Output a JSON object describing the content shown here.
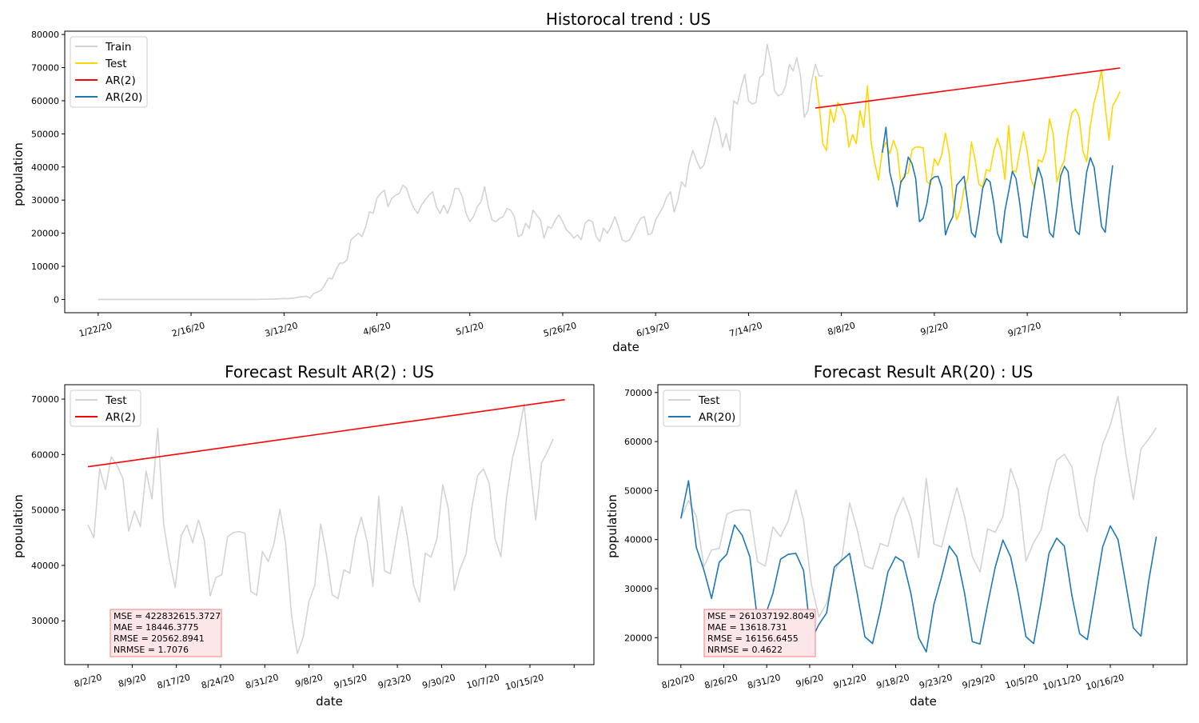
{
  "colors": {
    "train": "#d3d3d3",
    "test_top": "#ffd700",
    "test_bottom": "#d3d3d3",
    "ar2": "#ff0000",
    "ar20": "#1f77b4",
    "metrics_bg": "#fde6e8",
    "metrics_border": "#f08080"
  },
  "chart_data": [
    {
      "type": "line",
      "title": "Historocal trend : US",
      "xlabel": "date",
      "ylabel": "population",
      "x_start": "1/22/20",
      "x_tick_labels": [
        "1/22/20",
        "2/16/20",
        "3/12/20",
        "4/6/20",
        "5/1/20",
        "5/26/20",
        "6/19/20",
        "7/14/20",
        "8/8/20",
        "9/2/20",
        "9/27/20"
      ],
      "y_ticks": [
        0,
        10000,
        20000,
        30000,
        40000,
        50000,
        60000,
        70000,
        80000
      ],
      "ylim": [
        -4000,
        81000
      ],
      "legend": [
        "Train",
        "Test",
        "AR(2)",
        "AR(20)"
      ],
      "legend_loc": "upper left",
      "series": [
        {
          "name": "Train",
          "start_day": 0,
          "values": [
            0,
            0,
            0,
            0,
            0,
            0,
            0,
            0,
            0,
            0,
            0,
            0,
            0,
            0,
            0,
            0,
            0,
            0,
            0,
            0,
            0,
            0,
            0,
            0,
            0,
            0,
            0,
            0,
            0,
            0,
            0,
            0,
            0,
            0,
            0,
            0,
            0,
            0,
            0,
            0,
            0,
            0,
            0,
            0,
            50,
            60,
            80,
            100,
            150,
            200,
            300,
            200,
            400,
            500,
            700,
            800,
            1000,
            400,
            1800,
            2200,
            2800,
            4500,
            6500,
            6200,
            9000,
            11000,
            11000,
            12000,
            18000,
            19000,
            20000,
            19000,
            22000,
            26500,
            26000,
            30500,
            32000,
            33000,
            28000,
            30500,
            31500,
            32000,
            34500,
            33500,
            30000,
            27500,
            26000,
            28500,
            30000,
            31500,
            32500,
            28000,
            26000,
            28500,
            26000,
            29000,
            33500,
            33500,
            31000,
            26000,
            23500,
            25000,
            28000,
            29500,
            34000,
            28000,
            24000,
            23500,
            24500,
            25000,
            27500,
            27000,
            25000,
            19000,
            19500,
            23000,
            21500,
            27000,
            25500,
            24000,
            18500,
            22000,
            21500,
            24000,
            25500,
            23500,
            21000,
            20000,
            18500,
            19500,
            18000,
            23000,
            24000,
            23500,
            19000,
            17500,
            21500,
            20000,
            22000,
            25000,
            22000,
            18000,
            17500,
            18000,
            20000,
            22500,
            24500,
            25000,
            19500,
            20000,
            24000,
            26000,
            28000,
            31000,
            32500,
            26500,
            30000,
            35500,
            34000,
            41000,
            45000,
            42000,
            39500,
            40500,
            45000,
            50000,
            55000,
            52000,
            46000,
            50000,
            45000,
            60000,
            59000,
            64000,
            68000,
            60000,
            59000,
            59500,
            67000,
            68000,
            77000,
            72000,
            63000,
            61500,
            62000,
            64500,
            71000,
            69000,
            73000,
            67500,
            55000,
            57000,
            66000,
            71000,
            67500,
            67500
          ]
        },
        {
          "name": "Test",
          "start_day": 193,
          "values": [
            67500,
            59000,
            47000,
            45000,
            57500,
            53500,
            59500,
            58000,
            55500,
            46000,
            49800,
            47000,
            57000,
            52000,
            64500,
            47500,
            41000,
            36000,
            45000,
            47500,
            44000,
            48000,
            45000,
            35000,
            37800,
            38200,
            45200,
            46000,
            46000,
            45800,
            35500,
            34700,
            42500,
            40500,
            43800,
            50200,
            44000,
            31000,
            24000,
            27000,
            33500,
            36500,
            47500,
            42000,
            34700,
            34000,
            39200,
            38700,
            45000,
            48700,
            45000,
            36200,
            52500,
            39000,
            38500,
            44800,
            50600,
            44700,
            36500,
            33500,
            42200,
            41500,
            44800,
            54500,
            50000,
            35500,
            39500,
            42000,
            50500,
            56300,
            57500,
            55000,
            44800,
            41600,
            52500,
            59500,
            63500,
            69200,
            58000,
            48200,
            58500,
            60500,
            62800
          ]
        },
        {
          "name": "AR(2)",
          "start_day": 193,
          "values": [
            57800,
            69900
          ],
          "interpolate": "linear"
        },
        {
          "name": "AR(20)",
          "start_day": 211,
          "values": [
            44300,
            52000,
            38500,
            33800,
            28000,
            35500,
            37000,
            43000,
            41000,
            36500,
            23500,
            24500,
            29000,
            36000,
            37000,
            37200,
            33800,
            19500,
            22800,
            25000,
            34500,
            35800,
            37200,
            29000,
            20200,
            18800,
            25500,
            33500,
            36500,
            35500,
            29000,
            20000,
            17100,
            26800,
            32500,
            38700,
            36500,
            29000,
            19200,
            18700,
            26800,
            34500,
            39900,
            36500,
            29000,
            20200,
            18800,
            27500,
            37300,
            40200,
            38600,
            28500,
            20800,
            19600,
            29000,
            38500,
            42800,
            39900,
            31200,
            22000,
            20300,
            31500,
            40500
          ]
        }
      ]
    },
    {
      "type": "line",
      "title": "Forecast Result  AR(2) : US",
      "xlabel": "date",
      "ylabel": "population",
      "x_start": "8/2/20",
      "x_tick_labels": [
        "8/2/20",
        "8/9/20",
        "8/17/20",
        "8/24/20",
        "8/31/20",
        "9/8/20",
        "9/15/20",
        "9/23/20",
        "9/30/20",
        "10/7/20",
        "10/15/20"
      ],
      "y_ticks": [
        30000,
        40000,
        50000,
        60000,
        70000
      ],
      "ylim": [
        22100,
        72600
      ],
      "legend": [
        "Test",
        "AR(2)"
      ],
      "legend_loc": "upper left",
      "metrics": [
        "MSE = 422832615.3727",
        "MAE = 18446.3775",
        "RMSE = 20562.8941",
        "NRMSE = 1.7076"
      ],
      "series": [
        {
          "name": "Test",
          "start_index": 0,
          "values": [
            47300,
            45000,
            57500,
            53700,
            59600,
            58000,
            55700,
            46200,
            49800,
            47000,
            57000,
            52000,
            64700,
            47500,
            41000,
            36000,
            45300,
            47300,
            44100,
            48200,
            44600,
            34500,
            37800,
            38300,
            45200,
            45900,
            46100,
            45800,
            35300,
            34600,
            42500,
            40700,
            44000,
            50100,
            44000,
            31000,
            24100,
            27000,
            33500,
            36400,
            47500,
            42000,
            34700,
            34000,
            39200,
            38600,
            45000,
            48700,
            44300,
            36200,
            52500,
            39000,
            38500,
            44800,
            50600,
            44700,
            36400,
            33400,
            42200,
            41500,
            44800,
            54500,
            50100,
            35500,
            39400,
            42000,
            50400,
            56200,
            57400,
            54800,
            44800,
            41600,
            52500,
            59400,
            63400,
            69100,
            57800,
            48200,
            58500,
            60500,
            62800
          ]
        },
        {
          "name": "AR(2)",
          "start_index": 0,
          "values": [
            57800,
            69900
          ],
          "interpolate": "linear",
          "end_index": 82
        }
      ]
    },
    {
      "type": "line",
      "title": "Forecast Result  AR(20) : US",
      "xlabel": "date",
      "ylabel": "population",
      "x_start": "8/20/20",
      "x_tick_labels": [
        "8/20/20",
        "8/26/20",
        "8/31/20",
        "9/6/20",
        "9/12/20",
        "9/18/20",
        "9/23/20",
        "9/29/20",
        "10/5/20",
        "10/11/20",
        "10/16/20"
      ],
      "y_ticks": [
        20000,
        30000,
        40000,
        50000,
        60000,
        70000
      ],
      "ylim": [
        14500,
        71600
      ],
      "legend": [
        "Test",
        "AR(20)"
      ],
      "legend_loc": "upper left",
      "metrics": [
        "MSE = 261037192.8049",
        "MAE = 13618.731",
        "RMSE = 16156.6455",
        "NRMSE = 0.4622"
      ],
      "series": [
        {
          "name": "Test",
          "start_index": 0,
          "values": [
            44300,
            48000,
            44800,
            34500,
            37900,
            38200,
            45200,
            45900,
            46100,
            46000,
            35500,
            34600,
            42600,
            40600,
            43800,
            50100,
            44000,
            31000,
            24200,
            27000,
            33400,
            36300,
            47500,
            42000,
            34700,
            34000,
            39200,
            38600,
            45000,
            48600,
            44300,
            36300,
            52500,
            39100,
            38500,
            44900,
            50600,
            44700,
            36500,
            33400,
            42200,
            41500,
            44700,
            54500,
            50100,
            35600,
            39400,
            42000,
            50400,
            56200,
            57400,
            54800,
            44800,
            41600,
            52500,
            59400,
            63400,
            69200,
            57800,
            48200,
            58500,
            60500,
            62800
          ]
        },
        {
          "name": "AR(20)",
          "start_index": 0,
          "values": [
            44300,
            52000,
            38500,
            33800,
            28000,
            35400,
            37000,
            43000,
            40900,
            36500,
            23500,
            24500,
            29000,
            36000,
            37000,
            37200,
            33700,
            19500,
            22700,
            25000,
            34400,
            35800,
            37200,
            29000,
            20200,
            18800,
            25500,
            33400,
            36500,
            35500,
            29000,
            20000,
            17100,
            26800,
            32400,
            38700,
            36500,
            29000,
            19200,
            18700,
            26800,
            34400,
            39900,
            36500,
            29000,
            20200,
            18800,
            27500,
            37200,
            40300,
            38700,
            28500,
            20800,
            19600,
            29000,
            38500,
            42800,
            40000,
            31200,
            22000,
            20300,
            31500,
            40600
          ]
        }
      ]
    }
  ]
}
